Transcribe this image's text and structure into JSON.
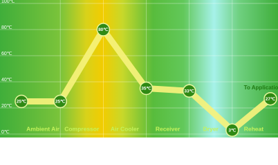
{
  "chart_data": {
    "type": "line",
    "regions": [
      "Ambient Air",
      "Compressor",
      "Air Cooler",
      "Receiver",
      "Dryer",
      "Reheat"
    ],
    "series": [
      {
        "color": "#f6f27c",
        "values": [
          25,
          25,
          80,
          35,
          33,
          3,
          27
        ],
        "value_labels": [
          "25℃",
          "25℃",
          "80℃",
          "35℃",
          "33℃",
          "3℃",
          "27℃"
        ]
      }
    ],
    "annotation": "To Application",
    "ylim": [
      0,
      100
    ],
    "yticks": [
      {
        "value": 0,
        "label": "0℃"
      },
      {
        "value": 20,
        "label": "20℃"
      },
      {
        "value": 40,
        "label": "40℃"
      },
      {
        "value": 60,
        "label": "60℃"
      },
      {
        "value": 80,
        "label": "80℃"
      },
      {
        "value": 100,
        "label": "100℃"
      }
    ],
    "grid": true
  }
}
